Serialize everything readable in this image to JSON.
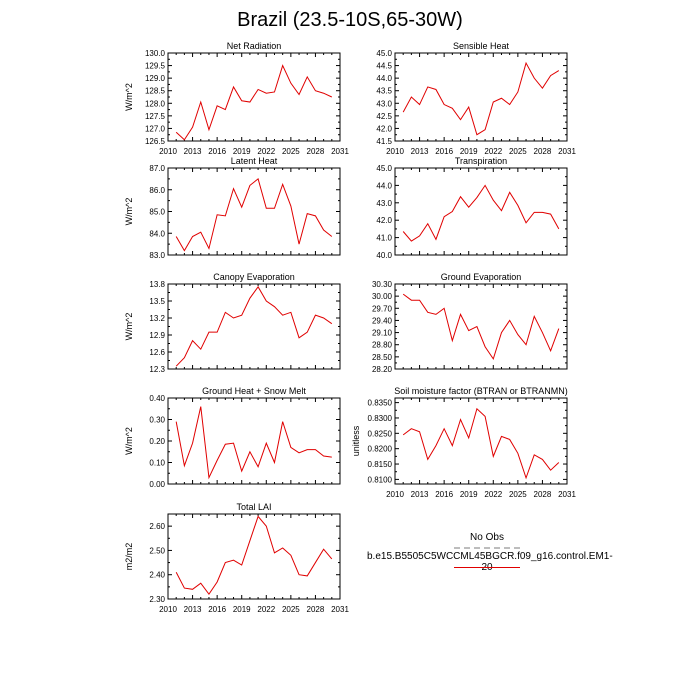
{
  "figure": {
    "title": "Brazil (23.5-10S,65-30W)",
    "line_color": "#e00000",
    "obs_color": "#bdbdbd"
  },
  "legend": {
    "obs_label": "No Obs",
    "series_label": "b.e15.B5505C5WCCML45BGCR.f09_g16.control.EM1-20"
  },
  "chart_data": [
    {
      "type": "line",
      "title": "Net Radiation",
      "ylabel": "W/m^2",
      "xlim": [
        2010,
        2031
      ],
      "ylim": [
        126.5,
        130.0
      ],
      "xaxis_labels": true,
      "xticks": [
        2010,
        2013,
        2016,
        2019,
        2022,
        2025,
        2028,
        2031
      ],
      "xtick_labels": [
        "2010",
        "2013",
        "2016",
        "2019",
        "2022",
        "2025",
        "2028",
        "2031"
      ],
      "yticks": [
        126.5,
        127.0,
        127.5,
        128.0,
        128.5,
        129.0,
        129.5,
        130.0
      ],
      "ytick_labels": [
        "126.5",
        "127.0",
        "127.5",
        "128.0",
        "128.5",
        "129.0",
        "129.5",
        "130.0"
      ],
      "x": [
        2011,
        2012,
        2013,
        2014,
        2015,
        2016,
        2017,
        2018,
        2019,
        2020,
        2021,
        2022,
        2023,
        2024,
        2025,
        2026,
        2027,
        2028,
        2029,
        2030
      ],
      "series": [
        {
          "values": [
            126.85,
            126.55,
            127.05,
            128.05,
            126.95,
            127.9,
            127.75,
            128.65,
            128.1,
            128.05,
            128.55,
            128.4,
            128.45,
            129.5,
            128.8,
            128.35,
            129.05,
            128.5,
            128.4,
            128.25
          ]
        }
      ]
    },
    {
      "type": "line",
      "title": "Sensible Heat",
      "ylabel": "",
      "xlim": [
        2010,
        2031
      ],
      "ylim": [
        41.5,
        45.0
      ],
      "xaxis_labels": true,
      "xticks": [
        2010,
        2013,
        2016,
        2019,
        2022,
        2025,
        2028,
        2031
      ],
      "xtick_labels": [
        "2010",
        "2013",
        "2016",
        "2019",
        "2022",
        "2025",
        "2028",
        "2031"
      ],
      "yticks": [
        41.5,
        42.0,
        42.5,
        43.0,
        43.5,
        44.0,
        44.5,
        45.0
      ],
      "ytick_labels": [
        "41.5",
        "42.0",
        "42.5",
        "43.0",
        "43.5",
        "44.0",
        "44.5",
        "45.0"
      ],
      "x": [
        2011,
        2012,
        2013,
        2014,
        2015,
        2016,
        2017,
        2018,
        2019,
        2020,
        2021,
        2022,
        2023,
        2024,
        2025,
        2026,
        2027,
        2028,
        2029,
        2030
      ],
      "series": [
        {
          "values": [
            42.65,
            43.25,
            42.95,
            43.65,
            43.55,
            42.95,
            42.8,
            42.35,
            42.85,
            41.75,
            41.95,
            43.05,
            43.2,
            42.95,
            43.45,
            44.6,
            44.0,
            43.6,
            44.1,
            44.3
          ]
        }
      ]
    },
    {
      "type": "line",
      "title": "Latent Heat",
      "ylabel": "W/m^2",
      "xlim": [
        2010,
        2031
      ],
      "ylim": [
        83.0,
        87.0
      ],
      "xaxis_labels": false,
      "xticks": [
        2010,
        2013,
        2016,
        2019,
        2022,
        2025,
        2028,
        2031
      ],
      "xtick_labels": [],
      "yticks": [
        83.0,
        84.0,
        85.0,
        86.0,
        87.0
      ],
      "ytick_labels": [
        "83.0",
        "84.0",
        "85.0",
        "86.0",
        "87.0"
      ],
      "x": [
        2011,
        2012,
        2013,
        2014,
        2015,
        2016,
        2017,
        2018,
        2019,
        2020,
        2021,
        2022,
        2023,
        2024,
        2025,
        2026,
        2027,
        2028,
        2029,
        2030
      ],
      "series": [
        {
          "values": [
            83.85,
            83.2,
            83.85,
            84.05,
            83.3,
            84.85,
            84.8,
            86.05,
            85.2,
            86.2,
            86.5,
            85.15,
            85.15,
            86.25,
            85.25,
            83.5,
            84.9,
            84.8,
            84.15,
            83.85
          ]
        }
      ]
    },
    {
      "type": "line",
      "title": "Transpiration",
      "ylabel": "",
      "xlim": [
        2010,
        2031
      ],
      "ylim": [
        40.0,
        45.0
      ],
      "xaxis_labels": false,
      "xticks": [
        2010,
        2013,
        2016,
        2019,
        2022,
        2025,
        2028,
        2031
      ],
      "xtick_labels": [],
      "yticks": [
        40.0,
        41.0,
        42.0,
        43.0,
        44.0,
        45.0
      ],
      "ytick_labels": [
        "40.0",
        "41.0",
        "42.0",
        "43.0",
        "44.0",
        "45.0"
      ],
      "x": [
        2011,
        2012,
        2013,
        2014,
        2015,
        2016,
        2017,
        2018,
        2019,
        2020,
        2021,
        2022,
        2023,
        2024,
        2025,
        2026,
        2027,
        2028,
        2029,
        2030
      ],
      "series": [
        {
          "values": [
            41.35,
            40.8,
            41.1,
            41.8,
            40.9,
            42.2,
            42.5,
            43.35,
            42.75,
            43.3,
            44.0,
            43.15,
            42.55,
            43.6,
            42.85,
            41.85,
            42.45,
            42.45,
            42.35,
            41.5
          ]
        }
      ]
    },
    {
      "type": "line",
      "title": "Canopy Evaporation",
      "ylabel": "W/m^2",
      "xlim": [
        2010,
        2031
      ],
      "ylim": [
        12.3,
        13.8
      ],
      "xaxis_labels": false,
      "xticks": [
        2010,
        2013,
        2016,
        2019,
        2022,
        2025,
        2028,
        2031
      ],
      "xtick_labels": [],
      "yticks": [
        12.3,
        12.6,
        12.9,
        13.2,
        13.5,
        13.8
      ],
      "ytick_labels": [
        "12.3",
        "12.6",
        "12.9",
        "13.2",
        "13.5",
        "13.8"
      ],
      "x": [
        2011,
        2012,
        2013,
        2014,
        2015,
        2016,
        2017,
        2018,
        2019,
        2020,
        2021,
        2022,
        2023,
        2024,
        2025,
        2026,
        2027,
        2028,
        2029,
        2030
      ],
      "series": [
        {
          "values": [
            12.35,
            12.5,
            12.8,
            12.65,
            12.95,
            12.95,
            13.3,
            13.2,
            13.25,
            13.55,
            13.75,
            13.5,
            13.4,
            13.25,
            13.3,
            12.85,
            12.95,
            13.25,
            13.2,
            13.1
          ]
        }
      ]
    },
    {
      "type": "line",
      "title": "Ground Evaporation",
      "ylabel": "",
      "xlim": [
        2010,
        2031
      ],
      "ylim": [
        28.2,
        30.3
      ],
      "xaxis_labels": false,
      "xticks": [
        2010,
        2013,
        2016,
        2019,
        2022,
        2025,
        2028,
        2031
      ],
      "xtick_labels": [],
      "yticks": [
        28.2,
        28.5,
        28.8,
        29.1,
        29.4,
        29.7,
        30.0,
        30.3
      ],
      "ytick_labels": [
        "28.20",
        "28.50",
        "28.80",
        "29.10",
        "29.40",
        "29.70",
        "30.00",
        "30.30"
      ],
      "x": [
        2011,
        2012,
        2013,
        2014,
        2015,
        2016,
        2017,
        2018,
        2019,
        2020,
        2021,
        2022,
        2023,
        2024,
        2025,
        2026,
        2027,
        2028,
        2029,
        2030
      ],
      "series": [
        {
          "values": [
            30.05,
            29.9,
            29.9,
            29.6,
            29.55,
            29.7,
            28.9,
            29.55,
            29.15,
            29.25,
            28.75,
            28.45,
            29.1,
            29.4,
            29.05,
            28.8,
            29.5,
            29.1,
            28.65,
            29.2
          ]
        }
      ]
    },
    {
      "type": "line",
      "title": "Ground Heat + Snow Melt",
      "ylabel": "W/m^2",
      "xlim": [
        2010,
        2031
      ],
      "ylim": [
        0.0,
        0.4
      ],
      "xaxis_labels": false,
      "xticks": [
        2010,
        2013,
        2016,
        2019,
        2022,
        2025,
        2028,
        2031
      ],
      "xtick_labels": [],
      "yticks": [
        0.0,
        0.1,
        0.2,
        0.3,
        0.4
      ],
      "ytick_labels": [
        "0.00",
        "0.10",
        "0.20",
        "0.30",
        "0.40"
      ],
      "x": [
        2011,
        2012,
        2013,
        2014,
        2015,
        2016,
        2017,
        2018,
        2019,
        2020,
        2021,
        2022,
        2023,
        2024,
        2025,
        2026,
        2027,
        2028,
        2029,
        2030
      ],
      "series": [
        {
          "values": [
            0.29,
            0.085,
            0.19,
            0.36,
            0.03,
            0.11,
            0.185,
            0.19,
            0.06,
            0.15,
            0.08,
            0.19,
            0.1,
            0.29,
            0.17,
            0.145,
            0.16,
            0.16,
            0.13,
            0.125
          ]
        }
      ]
    },
    {
      "type": "line",
      "title": "Soil moisture factor (BTRAN or BTRANMN)",
      "ylabel": "unitless",
      "xlim": [
        2010,
        2031
      ],
      "ylim": [
        0.8085,
        0.8365
      ],
      "xaxis_labels": true,
      "xticks": [
        2010,
        2013,
        2016,
        2019,
        2022,
        2025,
        2028,
        2031
      ],
      "xtick_labels": [
        "2010",
        "2013",
        "2016",
        "2019",
        "2022",
        "2025",
        "2028",
        "2031"
      ],
      "yticks": [
        0.81,
        0.815,
        0.82,
        0.825,
        0.83,
        0.835
      ],
      "ytick_labels": [
        "0.8100",
        "0.8150",
        "0.8200",
        "0.8250",
        "0.8300",
        "0.8350"
      ],
      "x": [
        2011,
        2012,
        2013,
        2014,
        2015,
        2016,
        2017,
        2018,
        2019,
        2020,
        2021,
        2022,
        2023,
        2024,
        2025,
        2026,
        2027,
        2028,
        2029,
        2030
      ],
      "series": [
        {
          "values": [
            0.8245,
            0.8265,
            0.8255,
            0.8165,
            0.821,
            0.8265,
            0.821,
            0.8295,
            0.8235,
            0.833,
            0.8305,
            0.8175,
            0.824,
            0.823,
            0.8185,
            0.8105,
            0.818,
            0.8165,
            0.813,
            0.8155
          ]
        }
      ]
    },
    {
      "type": "line",
      "title": "Total LAI",
      "ylabel": "m2/m2",
      "xlim": [
        2010,
        2031
      ],
      "ylim": [
        2.3,
        2.65
      ],
      "xaxis_labels": true,
      "xticks": [
        2010,
        2013,
        2016,
        2019,
        2022,
        2025,
        2028,
        2031
      ],
      "xtick_labels": [
        "2010",
        "2013",
        "2016",
        "2019",
        "2022",
        "2025",
        "2028",
        "2031"
      ],
      "yticks": [
        2.3,
        2.4,
        2.5,
        2.6
      ],
      "ytick_labels": [
        "2.30",
        "2.40",
        "2.50",
        "2.60"
      ],
      "x": [
        2011,
        2012,
        2013,
        2014,
        2015,
        2016,
        2017,
        2018,
        2019,
        2020,
        2021,
        2022,
        2023,
        2024,
        2025,
        2026,
        2027,
        2028,
        2029,
        2030
      ],
      "series": [
        {
          "values": [
            2.41,
            2.345,
            2.34,
            2.365,
            2.32,
            2.37,
            2.45,
            2.46,
            2.44,
            2.54,
            2.64,
            2.6,
            2.49,
            2.51,
            2.48,
            2.4,
            2.395,
            2.45,
            2.505,
            2.465
          ]
        }
      ]
    }
  ]
}
